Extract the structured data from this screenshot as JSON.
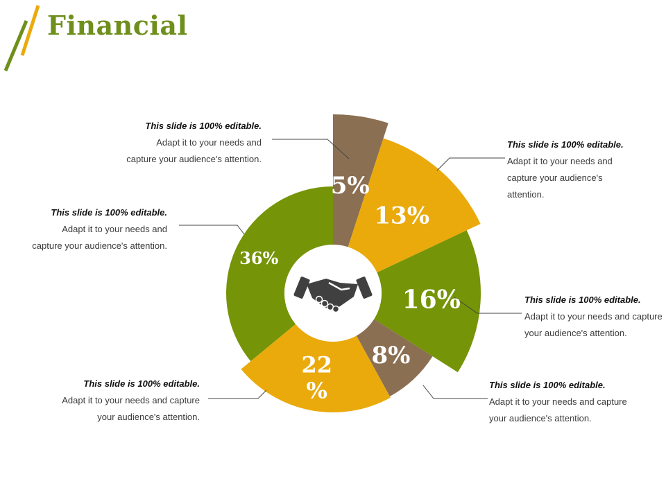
{
  "header": {
    "title": "Financial",
    "accent_colors": [
      "#6f8f1c",
      "#eaaa0c"
    ]
  },
  "chart_data": {
    "type": "pie",
    "variant": "variable-radius donut",
    "center_icon": "handshake-icon",
    "slices": [
      {
        "label": "5%",
        "value": 5,
        "color": "#8b6f52"
      },
      {
        "label": "13%",
        "value": 13,
        "color": "#eaaa0c"
      },
      {
        "label": "16%",
        "value": 16,
        "color": "#759407"
      },
      {
        "label": "8%",
        "value": 8,
        "color": "#8b6f52"
      },
      {
        "label": "22\n%",
        "value": 22,
        "color": "#eaaa0c"
      },
      {
        "label": "36%",
        "value": 36,
        "color": "#759407"
      }
    ]
  },
  "callouts": [
    {
      "id": "c1",
      "heading": "This slide is 100% editable.",
      "line1": "Adapt it to your needs and",
      "line2": "capture your audience's attention.",
      "line3": ""
    },
    {
      "id": "c2",
      "heading": "This slide is 100% editable.",
      "line1": "Adapt it to your needs and",
      "line2": "capture your audience's",
      "line3": "attention."
    },
    {
      "id": "c3",
      "heading": "This slide is 100% editable.",
      "line1": "Adapt it to your needs and",
      "line2": "capture your audience's attention.",
      "line3": ""
    },
    {
      "id": "c4",
      "heading": "This slide is 100% editable.",
      "line1": "Adapt it to your needs and capture",
      "line2": "your audience's attention.",
      "line3": ""
    },
    {
      "id": "c5",
      "heading": "This slide is 100% editable.",
      "line1": "Adapt it to your needs and capture",
      "line2": "your audience's attention.",
      "line3": ""
    },
    {
      "id": "c6",
      "heading": "This slide is 100% editable.",
      "line1": "Adapt it to your needs and capture",
      "line2": "your audience's attention.",
      "line3": ""
    }
  ]
}
